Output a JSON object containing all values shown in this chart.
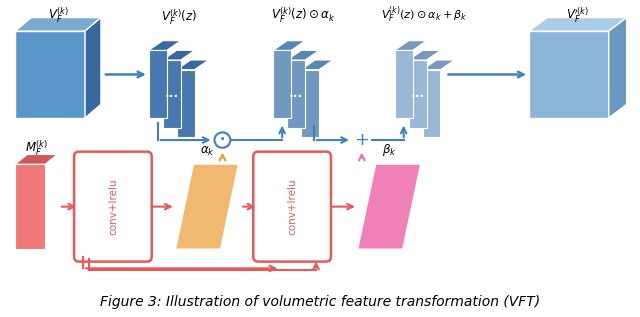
{
  "fig_width": 6.4,
  "fig_height": 3.17,
  "dpi": 100,
  "bg_color": "#ffffff",
  "caption": "Figure 3: Illustration of volumetric feature transformation (VFT)",
  "caption_fontsize": 10.0,
  "top_labels": [
    "$\\mathbf{\\mathit{V}}_F^{(k)}$",
    "$\\mathbf{\\mathit{V}}_F^{(k)}(z)$",
    "$\\mathbf{\\mathit{V}}_F^{(k)}(z) \\odot \\alpha_k$",
    "$\\mathbf{\\mathit{V}}_F^{(k)}(z) \\odot \\alpha_k + \\beta_k$",
    "$\\mathbf{\\mathit{V}}_F^{\\prime(k)}$"
  ],
  "bottom_labels": [
    "$\\mathbf{\\mathit{M}}_F^{(k)}$",
    "$\\alpha_k$",
    "$\\beta_k$"
  ],
  "blue_dark": "#4878b0",
  "blue_mid": "#5b96c8",
  "blue_light": "#8ab4d8",
  "blue_lighter": "#aac8e8",
  "blue_top": "#7aaad0",
  "blue_side": "#3868a0",
  "slice_dark_face": "#4878b0",
  "slice_dark_edge": "#3868a0",
  "slice_med_face": "#7098c0",
  "slice_med_edge": "#5888b0",
  "slice_light_face": "#9ab8d8",
  "slice_light_edge": "#7898c0",
  "result_face": "#8ab4d8",
  "result_top": "#aacce8",
  "result_side": "#6898c0",
  "red_face": "#f07878",
  "red_dark": "#d05858",
  "orange_face": "#f0b870",
  "pink_face": "#f080b8",
  "conv_color": "#e85858",
  "arrow_blue": "#4080c0",
  "arrow_orange": "#e8a030",
  "arrow_pink": "#e870b0",
  "arrow_red": "#e85858"
}
